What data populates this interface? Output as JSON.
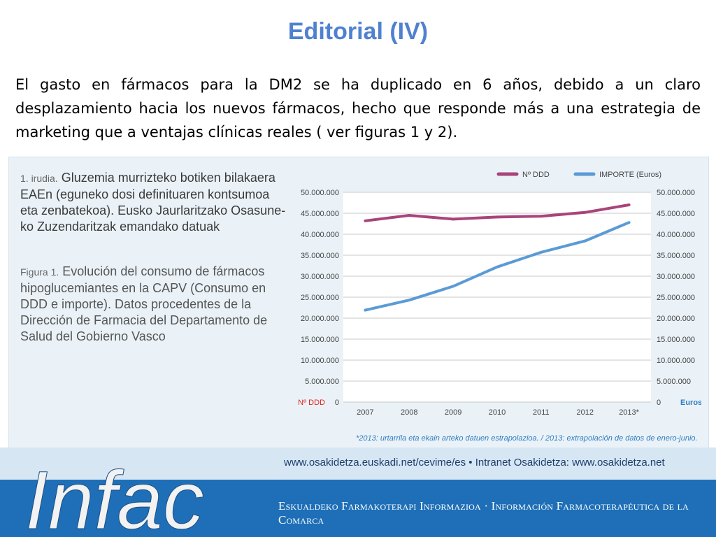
{
  "slide": {
    "title": "Editorial (IV)",
    "body": "El gasto en fármacos para la DM2 se ha duplicado en 6 años, debido a un claro desplazamiento hacia los nuevos fármacos, hecho que responde más a una estrategia de marketing que a ventajas clínicas reales ( ver figuras 1 y 2)."
  },
  "figure": {
    "caption_eu_lead": "1. irudia.",
    "caption_eu": "Gluzemia murrizteko botiken bilakaera EAEn (eguneko dosi definituaren kontsumoa eta zenbatekoa). Eusko Jaurlaritzako Osasune-ko Zuzendaritzak emandako datuak",
    "caption_es_lead": "Figura 1.",
    "caption_es": "Evolución del consumo de fármacos hipoglucemiantes en la CAPV (Consumo en DDD e importe). Datos procedentes de la Dirección de Farmacia del Departamento de Salud del Gobierno Vasco",
    "footnote": "*2013: urtarrila eta ekain arteko datuen estrapolazioa. / 2013: extrapolación de datos de enero-junio."
  },
  "chart_data": {
    "type": "line",
    "x": [
      "2007",
      "2008",
      "2009",
      "2010",
      "2011",
      "2012",
      "2013*"
    ],
    "series": [
      {
        "name": "Nº DDD",
        "color": "#a9447a",
        "axis": "left",
        "values": [
          43200000,
          44500000,
          43600000,
          44100000,
          44300000,
          45200000,
          47000000
        ]
      },
      {
        "name": "IMPORTE (Euros)",
        "color": "#5b9bd5",
        "axis": "right",
        "values": [
          21900000,
          24300000,
          27600000,
          32200000,
          35700000,
          38400000,
          42800000
        ]
      }
    ],
    "ylim": [
      0,
      50000000
    ],
    "y_ticks": [
      "0",
      "5.000.000",
      "10.000.000",
      "15.000.000",
      "20.000.000",
      "25.000.000",
      "30.000.000",
      "35.000.000",
      "40.000.000",
      "45.000.000",
      "50.000.000"
    ],
    "ylabel_left": "Nº DDD",
    "ylabel_right": "Euros",
    "ylabel_left_color": "#e2231a",
    "ylabel_right_color": "#2f7ec1",
    "grid": true,
    "legend": "top-right"
  },
  "footer": {
    "url": "www.osakidetza.euskadi.net/cevime/es  •  Intranet Osakidetza: www.osakidetza.net",
    "tagline": "Eskualdeko Farmakoterapi Informazioa  ·  Información Farmacoterapéutica de la Comarca",
    "logo_text": "Infac"
  }
}
